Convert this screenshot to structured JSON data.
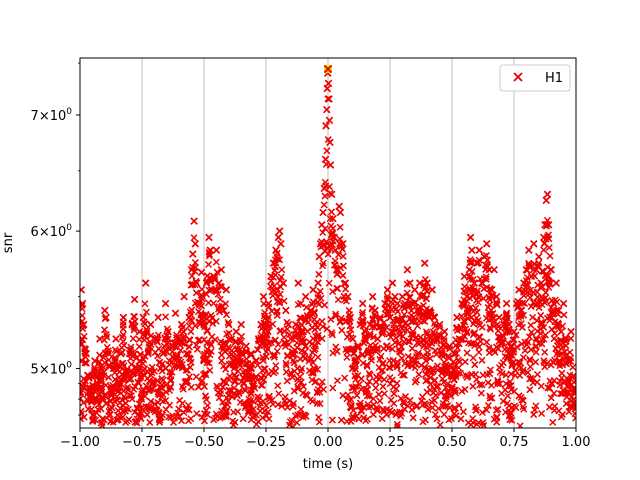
{
  "chart_data": {
    "type": "scatter",
    "xlabel": "time (s)",
    "ylabel": "snr",
    "xlim": [
      -1.0,
      1.0
    ],
    "ylim": [
      4.62,
      7.55
    ],
    "y_scale": "log",
    "grid": {
      "x": true,
      "y": false
    },
    "legend_position": "top-right",
    "x_ticks": [
      {
        "value": -1.0,
        "label": "−1.00"
      },
      {
        "value": -0.75,
        "label": "−0.75"
      },
      {
        "value": -0.5,
        "label": "−0.50"
      },
      {
        "value": -0.25,
        "label": "−0.25"
      },
      {
        "value": 0.0,
        "label": "0.00"
      },
      {
        "value": 0.25,
        "label": "0.25"
      },
      {
        "value": 0.5,
        "label": "0.50"
      },
      {
        "value": 0.75,
        "label": "0.75"
      },
      {
        "value": 1.0,
        "label": "1.00"
      }
    ],
    "y_ticks": [
      {
        "value": 5,
        "base": "5",
        "exp": "0"
      },
      {
        "value": 6,
        "base": "6",
        "exp": "0"
      },
      {
        "value": 7,
        "base": "7",
        "exp": "0"
      }
    ],
    "series": [
      {
        "name": "H1",
        "color": "#ee0000",
        "marker": "x",
        "points": [
          [
            -0.995,
            5.55
          ],
          [
            -0.99,
            5.45
          ],
          [
            -0.985,
            5.3
          ],
          [
            -0.975,
            5.1
          ],
          [
            -0.965,
            4.95
          ],
          [
            -0.955,
            4.85
          ],
          [
            -0.94,
            5.05
          ],
          [
            -0.93,
            4.9
          ],
          [
            -0.92,
            5.2
          ],
          [
            -0.91,
            4.8
          ],
          [
            -0.9,
            5.4
          ],
          [
            -0.895,
            5.35
          ],
          [
            -0.885,
            5.1
          ],
          [
            -0.875,
            4.85
          ],
          [
            -0.865,
            5.0
          ],
          [
            -0.855,
            5.2
          ],
          [
            -0.845,
            4.9
          ],
          [
            -0.835,
            5.1
          ],
          [
            -0.825,
            5.35
          ],
          [
            -0.815,
            4.95
          ],
          [
            -0.8,
            5.1
          ],
          [
            -0.79,
            5.3
          ],
          [
            -0.78,
            5.48
          ],
          [
            -0.77,
            5.0
          ],
          [
            -0.76,
            5.25
          ],
          [
            -0.75,
            4.85
          ],
          [
            -0.745,
            5.35
          ],
          [
            -0.735,
            5.6
          ],
          [
            -0.725,
            5.1
          ],
          [
            -0.715,
            5.3
          ],
          [
            -0.705,
            4.9
          ],
          [
            -0.695,
            5.2
          ],
          [
            -0.685,
            5.35
          ],
          [
            -0.675,
            5.0
          ],
          [
            -0.665,
            5.1
          ],
          [
            -0.655,
            5.45
          ],
          [
            -0.645,
            5.25
          ],
          [
            -0.635,
            4.95
          ],
          [
            -0.625,
            5.15
          ],
          [
            -0.615,
            5.38
          ],
          [
            -0.6,
            5.2
          ],
          [
            -0.59,
            5.3
          ],
          [
            -0.58,
            5.5
          ],
          [
            -0.57,
            5.1
          ],
          [
            -0.56,
            5.35
          ],
          [
            -0.55,
            5.7
          ],
          [
            -0.545,
            5.82
          ],
          [
            -0.54,
            6.08
          ],
          [
            -0.535,
            5.9
          ],
          [
            -0.53,
            5.6
          ],
          [
            -0.52,
            5.45
          ],
          [
            -0.51,
            5.68
          ],
          [
            -0.5,
            5.3
          ],
          [
            -0.49,
            5.6
          ],
          [
            -0.48,
            5.95
          ],
          [
            -0.475,
            5.85
          ],
          [
            -0.47,
            5.55
          ],
          [
            -0.46,
            5.65
          ],
          [
            -0.45,
            5.85
          ],
          [
            -0.44,
            5.6
          ],
          [
            -0.43,
            5.7
          ],
          [
            -0.42,
            5.4
          ],
          [
            -0.41,
            5.55
          ],
          [
            -0.4,
            5.3
          ],
          [
            -0.39,
            5.2
          ],
          [
            -0.38,
            5.05
          ],
          [
            -0.37,
            5.25
          ],
          [
            -0.36,
            5.1
          ],
          [
            -0.35,
            5.3
          ],
          [
            -0.34,
            4.9
          ],
          [
            -0.33,
            5.15
          ],
          [
            -0.32,
            5.0
          ],
          [
            -0.31,
            5.1
          ],
          [
            -0.3,
            4.9
          ],
          [
            -0.29,
            5.05
          ],
          [
            -0.28,
            5.2
          ],
          [
            -0.27,
            5.3
          ],
          [
            -0.26,
            5.5
          ],
          [
            -0.25,
            5.3
          ],
          [
            -0.24,
            5.45
          ],
          [
            -0.23,
            5.65
          ],
          [
            -0.22,
            5.75
          ],
          [
            -0.21,
            5.85
          ],
          [
            -0.2,
            5.95
          ],
          [
            -0.195,
            6.0
          ],
          [
            -0.19,
            5.9
          ],
          [
            -0.18,
            5.6
          ],
          [
            -0.17,
            5.4
          ],
          [
            -0.16,
            5.3
          ],
          [
            -0.15,
            5.2
          ],
          [
            -0.14,
            5.1
          ],
          [
            -0.13,
            5.3
          ],
          [
            -0.12,
            5.6
          ],
          [
            -0.11,
            5.45
          ],
          [
            -0.1,
            5.25
          ],
          [
            -0.09,
            5.5
          ],
          [
            -0.08,
            5.35
          ],
          [
            -0.07,
            5.4
          ],
          [
            -0.06,
            5.55
          ],
          [
            -0.05,
            5.3
          ],
          [
            -0.04,
            5.6
          ],
          [
            -0.035,
            5.8
          ],
          [
            -0.03,
            5.9
          ],
          [
            -0.025,
            6.05
          ],
          [
            -0.02,
            6.15
          ],
          [
            -0.015,
            6.35
          ],
          [
            -0.01,
            6.6
          ],
          [
            -0.008,
            6.9
          ],
          [
            -0.005,
            7.05
          ],
          [
            -0.003,
            7.25
          ],
          [
            -0.001,
            7.4
          ],
          [
            0.0,
            7.44
          ],
          [
            0.002,
            7.3
          ],
          [
            0.004,
            7.15
          ],
          [
            0.006,
            6.95
          ],
          [
            0.008,
            6.75
          ],
          [
            0.01,
            6.55
          ],
          [
            0.015,
            6.3
          ],
          [
            0.02,
            6.1
          ],
          [
            0.025,
            5.95
          ],
          [
            0.03,
            5.85
          ],
          [
            0.04,
            5.7
          ],
          [
            0.045,
            6.2
          ],
          [
            0.05,
            6.15
          ],
          [
            0.06,
            5.9
          ],
          [
            0.07,
            5.6
          ],
          [
            0.08,
            5.5
          ],
          [
            0.09,
            5.35
          ],
          [
            0.1,
            5.2
          ],
          [
            0.11,
            5.05
          ],
          [
            0.12,
            5.15
          ],
          [
            0.13,
            5.3
          ],
          [
            0.14,
            5.45
          ],
          [
            0.15,
            5.25
          ],
          [
            0.16,
            5.1
          ],
          [
            0.17,
            5.3
          ],
          [
            0.18,
            5.5
          ],
          [
            0.19,
            5.4
          ],
          [
            0.2,
            5.2
          ],
          [
            0.21,
            5.35
          ],
          [
            0.22,
            5.25
          ],
          [
            0.23,
            5.45
          ],
          [
            0.24,
            5.55
          ],
          [
            0.25,
            5.35
          ],
          [
            0.26,
            5.6
          ],
          [
            0.27,
            5.5
          ],
          [
            0.28,
            5.45
          ],
          [
            0.29,
            5.3
          ],
          [
            0.3,
            5.5
          ],
          [
            0.31,
            5.45
          ],
          [
            0.32,
            5.7
          ],
          [
            0.33,
            5.6
          ],
          [
            0.34,
            5.45
          ],
          [
            0.35,
            5.55
          ],
          [
            0.36,
            5.4
          ],
          [
            0.37,
            5.6
          ],
          [
            0.38,
            5.5
          ],
          [
            0.39,
            5.75
          ],
          [
            0.4,
            5.6
          ],
          [
            0.41,
            5.4
          ],
          [
            0.42,
            5.55
          ],
          [
            0.43,
            5.35
          ],
          [
            0.44,
            5.2
          ],
          [
            0.45,
            5.3
          ],
          [
            0.46,
            5.1
          ],
          [
            0.47,
            5.25
          ],
          [
            0.48,
            5.0
          ],
          [
            0.49,
            5.15
          ],
          [
            0.5,
            4.95
          ],
          [
            0.51,
            5.1
          ],
          [
            0.52,
            5.35
          ],
          [
            0.53,
            5.2
          ],
          [
            0.54,
            5.45
          ],
          [
            0.55,
            5.65
          ],
          [
            0.56,
            5.5
          ],
          [
            0.57,
            5.7
          ],
          [
            0.575,
            5.95
          ],
          [
            0.58,
            5.85
          ],
          [
            0.59,
            5.6
          ],
          [
            0.6,
            5.75
          ],
          [
            0.61,
            5.85
          ],
          [
            0.62,
            5.6
          ],
          [
            0.63,
            5.8
          ],
          [
            0.64,
            5.9
          ],
          [
            0.65,
            5.7
          ],
          [
            0.66,
            5.55
          ],
          [
            0.67,
            5.7
          ],
          [
            0.68,
            5.5
          ],
          [
            0.69,
            5.35
          ],
          [
            0.7,
            5.2
          ],
          [
            0.71,
            5.3
          ],
          [
            0.72,
            5.45
          ],
          [
            0.73,
            5.3
          ],
          [
            0.74,
            5.15
          ],
          [
            0.75,
            5.25
          ],
          [
            0.76,
            5.45
          ],
          [
            0.77,
            5.55
          ],
          [
            0.78,
            5.4
          ],
          [
            0.79,
            5.6
          ],
          [
            0.8,
            5.7
          ],
          [
            0.81,
            5.85
          ],
          [
            0.82,
            5.65
          ],
          [
            0.83,
            5.9
          ],
          [
            0.84,
            5.7
          ],
          [
            0.85,
            5.8
          ],
          [
            0.86,
            5.6
          ],
          [
            0.87,
            5.95
          ],
          [
            0.875,
            6.05
          ],
          [
            0.88,
            6.25
          ],
          [
            0.885,
            6.3
          ],
          [
            0.89,
            6.05
          ],
          [
            0.9,
            5.7
          ],
          [
            0.91,
            5.45
          ],
          [
            0.92,
            5.6
          ],
          [
            0.93,
            5.4
          ],
          [
            0.94,
            5.25
          ],
          [
            0.95,
            5.45
          ],
          [
            0.96,
            5.2
          ],
          [
            0.97,
            5.05
          ],
          [
            0.98,
            5.25
          ],
          [
            0.99,
            4.95
          ],
          [
            0.995,
            4.85
          ]
        ],
        "band_density": 9
      }
    ],
    "highlight_point": {
      "x": 0.0,
      "y": 7.44,
      "color": "#e5e500"
    }
  }
}
